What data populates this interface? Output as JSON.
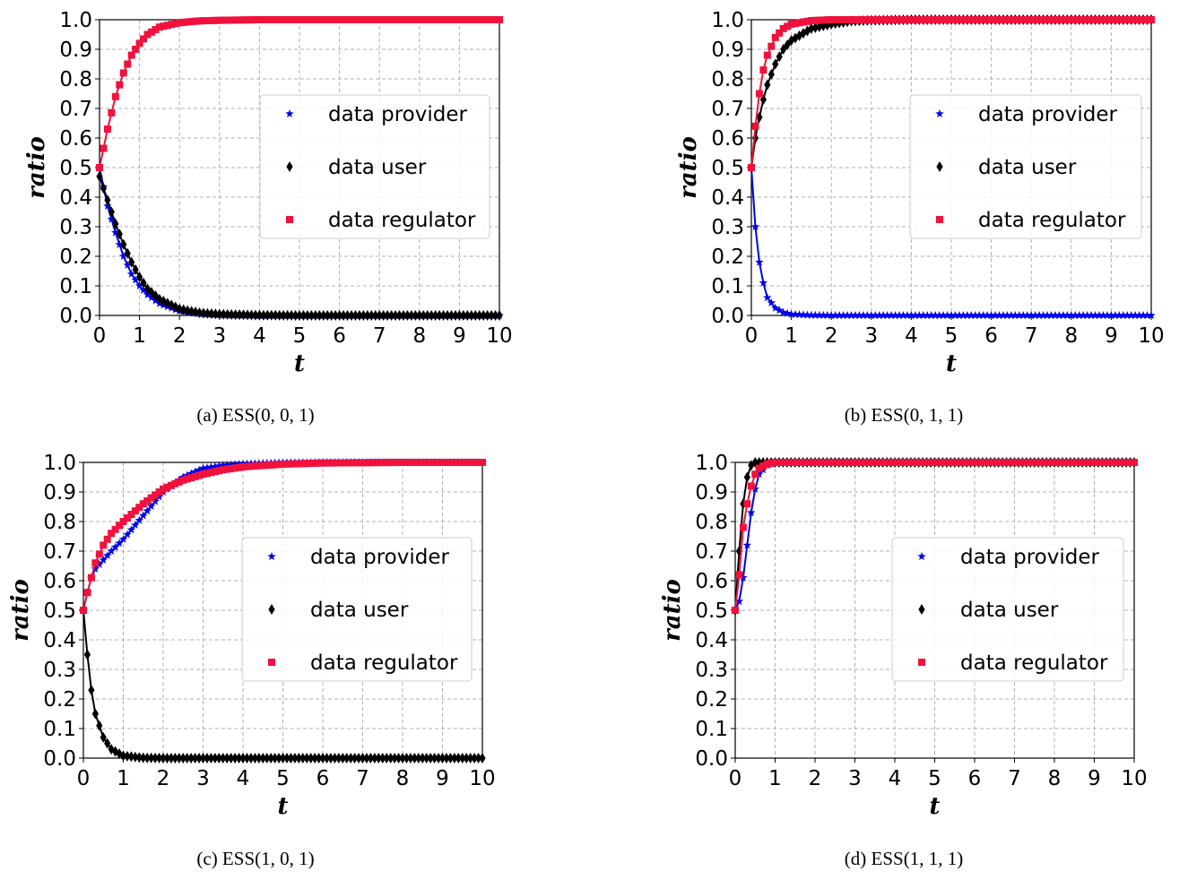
{
  "colors": {
    "data_provider": "#0000ee",
    "data_user": "#000000",
    "data_regulator": "#f0123c"
  },
  "chart_data": [
    {
      "type": "line",
      "caption": "(a) ESS(0, 0, 1)",
      "xlabel": "t",
      "ylabel": "ratio",
      "xlim": [
        0,
        10
      ],
      "ylim": [
        0,
        1
      ],
      "xticks": [
        0,
        1,
        2,
        3,
        4,
        5,
        6,
        7,
        8,
        9,
        10
      ],
      "yticks": [
        "0.0",
        "0.1",
        "0.2",
        "0.3",
        "0.4",
        "0.5",
        "0.6",
        "0.7",
        "0.8",
        "0.9",
        "1.0"
      ],
      "grid": true,
      "legend": "right",
      "x": [
        0,
        0.2,
        0.4,
        0.6,
        0.8,
        1.0,
        1.2,
        1.5,
        2.0,
        2.5,
        3.0,
        4.0,
        5.0,
        6.0,
        8.0,
        10.0
      ],
      "series": [
        {
          "name": "data provider",
          "marker": "star",
          "values": [
            0.5,
            0.37,
            0.28,
            0.2,
            0.14,
            0.1,
            0.07,
            0.04,
            0.015,
            0.006,
            0.002,
            0,
            0,
            0,
            0,
            0
          ]
        },
        {
          "name": "data user",
          "marker": "diamond",
          "values": [
            0.47,
            0.39,
            0.31,
            0.24,
            0.18,
            0.13,
            0.09,
            0.055,
            0.022,
            0.009,
            0.004,
            0.001,
            0,
            0,
            0,
            0
          ]
        },
        {
          "name": "data regulator",
          "marker": "square",
          "values": [
            0.5,
            0.63,
            0.74,
            0.82,
            0.88,
            0.92,
            0.95,
            0.975,
            0.99,
            0.996,
            0.998,
            1.0,
            1.0,
            1.0,
            1.0,
            1.0
          ]
        }
      ]
    },
    {
      "type": "line",
      "caption": "(b) ESS(0, 1, 1)",
      "xlabel": "t",
      "ylabel": "ratio",
      "xlim": [
        0,
        10
      ],
      "ylim": [
        0,
        1
      ],
      "xticks": [
        0,
        1,
        2,
        3,
        4,
        5,
        6,
        7,
        8,
        9,
        10
      ],
      "yticks": [
        "0.0",
        "0.1",
        "0.2",
        "0.3",
        "0.4",
        "0.5",
        "0.6",
        "0.7",
        "0.8",
        "0.9",
        "1.0"
      ],
      "grid": true,
      "legend": "right",
      "x": [
        0,
        0.1,
        0.2,
        0.3,
        0.4,
        0.6,
        0.8,
        1.0,
        1.5,
        2.0,
        2.5,
        3.0,
        4.0,
        6.0,
        8.0,
        10.0
      ],
      "series": [
        {
          "name": "data provider",
          "marker": "star",
          "values": [
            0.5,
            0.3,
            0.18,
            0.11,
            0.06,
            0.025,
            0.01,
            0.004,
            0.001,
            0,
            0,
            0,
            0,
            0,
            0,
            0
          ]
        },
        {
          "name": "data user",
          "marker": "diamond",
          "values": [
            0.5,
            0.6,
            0.67,
            0.73,
            0.78,
            0.85,
            0.9,
            0.93,
            0.97,
            0.985,
            0.995,
            0.998,
            1.0,
            1.0,
            1.0,
            1.0
          ]
        },
        {
          "name": "data regulator",
          "marker": "square",
          "values": [
            0.5,
            0.64,
            0.75,
            0.83,
            0.88,
            0.94,
            0.97,
            0.985,
            0.997,
            1.0,
            1.0,
            1.0,
            1.0,
            1.0,
            1.0,
            1.0
          ]
        }
      ]
    },
    {
      "type": "line",
      "caption": "(c) ESS(1, 0, 1)",
      "xlabel": "t",
      "ylabel": "ratio",
      "xlim": [
        0,
        10
      ],
      "ylim": [
        0,
        1
      ],
      "xticks": [
        0,
        1,
        2,
        3,
        4,
        5,
        6,
        7,
        8,
        9,
        10
      ],
      "yticks": [
        "0.0",
        "0.1",
        "0.2",
        "0.3",
        "0.4",
        "0.5",
        "0.6",
        "0.7",
        "0.8",
        "0.9",
        "1.0"
      ],
      "grid": true,
      "legend": "right",
      "x": [
        0,
        0.1,
        0.2,
        0.3,
        0.5,
        0.7,
        1.0,
        1.5,
        2.0,
        2.5,
        3.0,
        3.5,
        4.0,
        5.0,
        6.0,
        8.0,
        10.0
      ],
      "series": [
        {
          "name": "data provider",
          "marker": "star",
          "values": [
            0.5,
            0.56,
            0.61,
            0.64,
            0.67,
            0.7,
            0.74,
            0.82,
            0.9,
            0.95,
            0.98,
            0.99,
            0.995,
            0.999,
            1.0,
            1.0,
            1.0
          ]
        },
        {
          "name": "data user",
          "marker": "diamond",
          "values": [
            0.5,
            0.35,
            0.23,
            0.15,
            0.07,
            0.03,
            0.008,
            0.001,
            0,
            0,
            0,
            0,
            0,
            0,
            0,
            0,
            0
          ]
        },
        {
          "name": "data regulator",
          "marker": "square",
          "values": [
            0.5,
            0.56,
            0.61,
            0.66,
            0.72,
            0.76,
            0.8,
            0.86,
            0.91,
            0.94,
            0.96,
            0.975,
            0.985,
            0.994,
            0.998,
            1.0,
            1.0
          ]
        }
      ]
    },
    {
      "type": "line",
      "caption": "(d) ESS(1, 1, 1)",
      "xlabel": "t",
      "ylabel": "ratio",
      "xlim": [
        0,
        10
      ],
      "ylim": [
        0,
        1
      ],
      "xticks": [
        0,
        1,
        2,
        3,
        4,
        5,
        6,
        7,
        8,
        9,
        10
      ],
      "yticks": [
        "0.0",
        "0.1",
        "0.2",
        "0.3",
        "0.4",
        "0.5",
        "0.6",
        "0.7",
        "0.8",
        "0.9",
        "1.0"
      ],
      "grid": true,
      "legend": "right",
      "x": [
        0,
        0.1,
        0.2,
        0.3,
        0.4,
        0.5,
        0.6,
        0.8,
        1.0,
        1.5,
        2.0,
        3.0,
        4.0,
        6.0,
        8.0,
        10.0
      ],
      "series": [
        {
          "name": "data provider",
          "marker": "star",
          "values": [
            0.5,
            0.53,
            0.61,
            0.72,
            0.83,
            0.91,
            0.96,
            0.99,
            1.0,
            1.0,
            1.0,
            1.0,
            1.0,
            1.0,
            1.0,
            1.0
          ]
        },
        {
          "name": "data user",
          "marker": "diamond",
          "values": [
            0.5,
            0.7,
            0.86,
            0.95,
            0.99,
            1.0,
            1.0,
            1.0,
            1.0,
            1.0,
            1.0,
            1.0,
            1.0,
            1.0,
            1.0,
            1.0
          ]
        },
        {
          "name": "data regulator",
          "marker": "square",
          "values": [
            0.5,
            0.62,
            0.78,
            0.86,
            0.92,
            0.96,
            0.98,
            0.995,
            1.0,
            1.0,
            1.0,
            1.0,
            1.0,
            1.0,
            1.0,
            1.0
          ]
        }
      ]
    }
  ]
}
